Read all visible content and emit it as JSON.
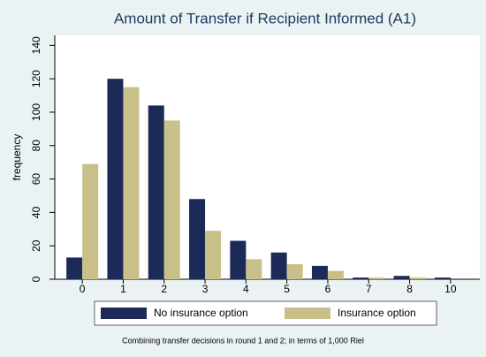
{
  "chart_data": {
    "type": "bar",
    "title": "Amount of Transfer if Recipient Informed (A1)",
    "y_label": "frequency",
    "note": "Combining transfer decisions in round 1 and 2; in terms of 1,000 Riel",
    "categories": [
      "0",
      "1",
      "2",
      "3",
      "4",
      "5",
      "6",
      "7",
      "8",
      "10"
    ],
    "series": [
      {
        "name": "No insurance option",
        "color": "#1c2a58",
        "values": [
          13,
          120,
          104,
          48,
          23,
          16,
          8,
          1,
          2,
          1
        ]
      },
      {
        "name": "Insurance option",
        "color": "#c9c089",
        "values": [
          69,
          115,
          95,
          29,
          12,
          9,
          5,
          1,
          1,
          0
        ]
      }
    ],
    "ylim": [
      0,
      146
    ],
    "yticks": [
      0,
      20,
      40,
      60,
      80,
      100,
      120,
      140
    ],
    "grid": false
  }
}
